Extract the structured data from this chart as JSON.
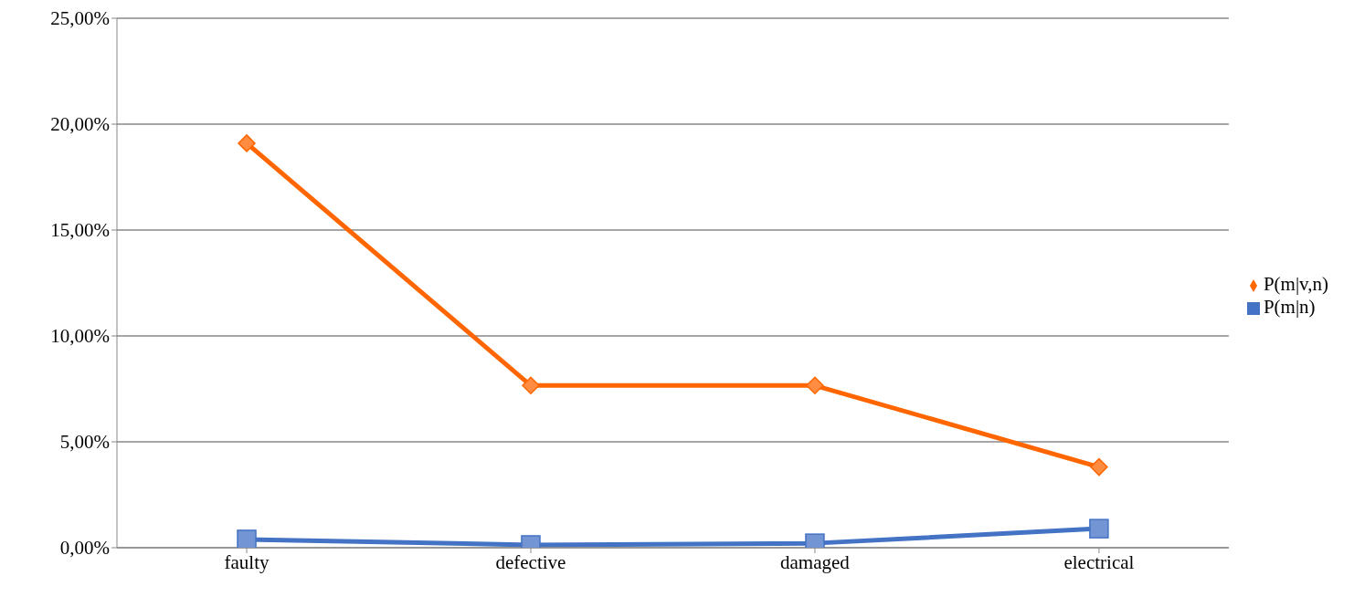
{
  "chart_data": {
    "type": "line",
    "categories": [
      "faulty",
      "defective",
      "damaged",
      "electrical"
    ],
    "series": [
      {
        "name": "P(m|v,n)",
        "color": "#ff6600",
        "marker": "diamond",
        "values": [
          19.1,
          7.66,
          7.66,
          3.81
        ]
      },
      {
        "name": "P(m|n)",
        "color": "#4472c4",
        "marker": "square",
        "values": [
          0.39,
          0.13,
          0.21,
          0.9
        ]
      }
    ],
    "ylim": [
      0,
      25
    ],
    "yticks": [
      {
        "value": 0,
        "label": "0,00%"
      },
      {
        "value": 5,
        "label": "5,00%"
      },
      {
        "value": 10,
        "label": "10,00%"
      },
      {
        "value": 15,
        "label": "15,00%"
      },
      {
        "value": 20,
        "label": "20,00%"
      },
      {
        "value": 25,
        "label": "25,00%"
      }
    ],
    "grid": "y",
    "legend": "right",
    "line_style": "solid"
  }
}
